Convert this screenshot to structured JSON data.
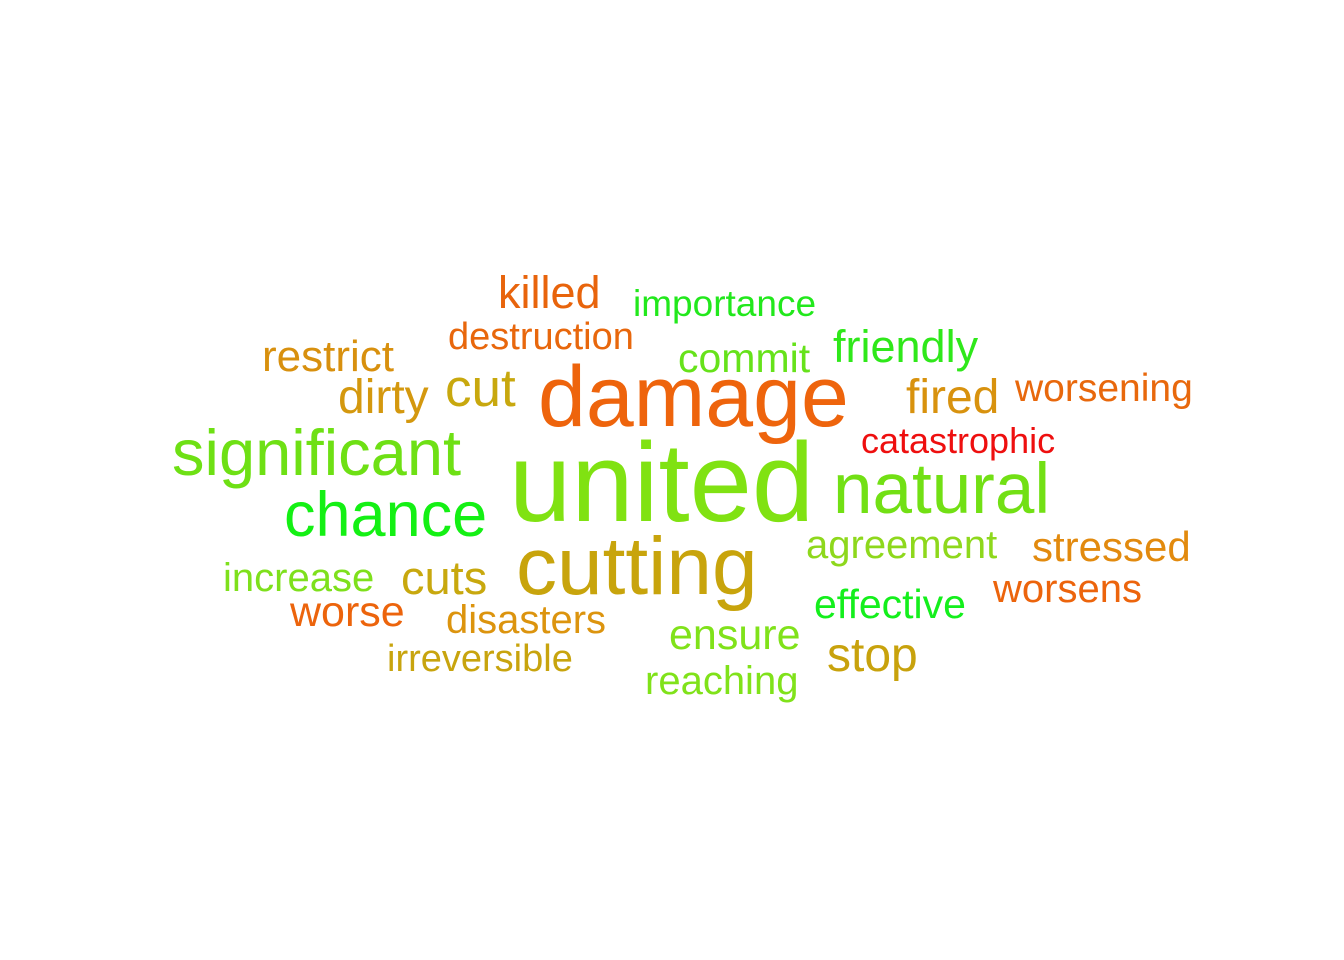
{
  "words": [
    {
      "text": "killed",
      "color": "#e8640c"
    },
    {
      "text": "importance",
      "color": "#22e81c"
    },
    {
      "text": "destruction",
      "color": "#e8670c"
    },
    {
      "text": "restrict",
      "color": "#d8900e"
    },
    {
      "text": "commit",
      "color": "#66e21a"
    },
    {
      "text": "friendly",
      "color": "#2fe81a"
    },
    {
      "text": "cut",
      "color": "#c8a80e"
    },
    {
      "text": "dirty",
      "color": "#d4980e"
    },
    {
      "text": "damage",
      "color": "#ee640c"
    },
    {
      "text": "fired",
      "color": "#d8920e"
    },
    {
      "text": "worsening",
      "color": "#e8680c"
    },
    {
      "text": "catastrophic",
      "color": "#ee0f0f"
    },
    {
      "text": "significant",
      "color": "#6ee014"
    },
    {
      "text": "united",
      "color": "#80e212"
    },
    {
      "text": "natural",
      "color": "#72e014"
    },
    {
      "text": "chance",
      "color": "#14f014"
    },
    {
      "text": "agreement",
      "color": "#8ed81c"
    },
    {
      "text": "stressed",
      "color": "#e28a0e"
    },
    {
      "text": "cutting",
      "color": "#c8a40c"
    },
    {
      "text": "increase",
      "color": "#7ee01c"
    },
    {
      "text": "cuts",
      "color": "#c8a80e"
    },
    {
      "text": "worsens",
      "color": "#ec640c"
    },
    {
      "text": "effective",
      "color": "#14ef1c"
    },
    {
      "text": "worse",
      "color": "#ec640c"
    },
    {
      "text": "disasters",
      "color": "#dc940e"
    },
    {
      "text": "ensure",
      "color": "#80e21a"
    },
    {
      "text": "stop",
      "color": "#c8a20c"
    },
    {
      "text": "irreversible",
      "color": "#c8a40e"
    },
    {
      "text": "reaching",
      "color": "#80e21a"
    }
  ]
}
